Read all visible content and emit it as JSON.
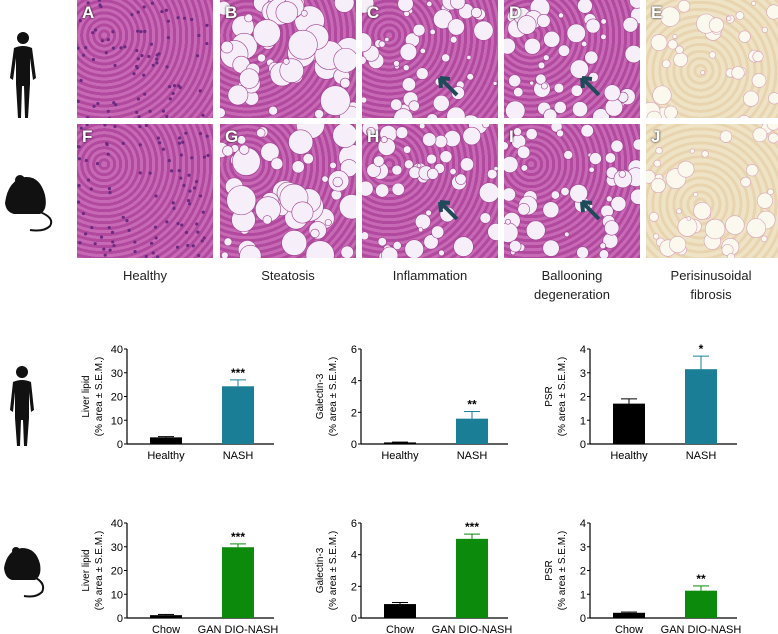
{
  "panels": [
    {
      "letter": "A",
      "stain": "HE",
      "species": "human"
    },
    {
      "letter": "B",
      "stain": "HE",
      "species": "human"
    },
    {
      "letter": "C",
      "stain": "HE",
      "species": "human",
      "arrow": true
    },
    {
      "letter": "D",
      "stain": "HE",
      "species": "human",
      "arrow": true
    },
    {
      "letter": "E",
      "stain": "PSR",
      "species": "human"
    },
    {
      "letter": "F",
      "stain": "HE",
      "species": "mouse"
    },
    {
      "letter": "G",
      "stain": "HE",
      "species": "mouse"
    },
    {
      "letter": "H",
      "stain": "HE",
      "species": "mouse",
      "arrow": true
    },
    {
      "letter": "I",
      "stain": "HE",
      "species": "mouse",
      "arrow": true
    },
    {
      "letter": "J",
      "stain": "PSR",
      "species": "mouse"
    }
  ],
  "captions": [
    "Healthy",
    "Steatosis",
    "Inflammation",
    "Ballooning degeneration",
    "Perisinusoidal fibrosis"
  ],
  "icons": {
    "row1": "human-silhouette-icon",
    "row2": "mouse-silhouette-icon"
  },
  "colors": {
    "black": "#000000",
    "human": "#1a7f96",
    "mouse": "#0b8a0b"
  },
  "chart_data": [
    {
      "type": "bar",
      "ylabel": "Liver lipid",
      "ylabel2": "(% area ± S.E.M.)",
      "categories": [
        "Healthy",
        "NASH"
      ],
      "values": [
        2.8,
        24.3
      ],
      "errors": [
        0.3,
        2.7
      ],
      "ylim": [
        0,
        40
      ],
      "ticks": [
        0,
        10,
        20,
        30,
        40
      ],
      "significance": "***",
      "color": "#1a7f96"
    },
    {
      "type": "bar",
      "ylabel": "Galectin-3",
      "ylabel2": "(% area ± S.E.M.)",
      "categories": [
        "Healthy",
        "NASH"
      ],
      "values": [
        0.1,
        1.6
      ],
      "errors": [
        0.02,
        0.45
      ],
      "ylim": [
        0,
        6
      ],
      "ticks": [
        0,
        2,
        4,
        6
      ],
      "significance": "**",
      "color": "#1a7f96"
    },
    {
      "type": "bar",
      "ylabel": "PSR",
      "ylabel2": "(% area ± S.E.M.)",
      "categories": [
        "Healthy",
        "NASH"
      ],
      "values": [
        1.7,
        3.15
      ],
      "errors": [
        0.2,
        0.55
      ],
      "ylim": [
        0,
        4
      ],
      "ticks": [
        0,
        1,
        2,
        3,
        4
      ],
      "significance": "*",
      "color": "#1a7f96"
    },
    {
      "type": "bar",
      "ylabel": "Liver lipid",
      "ylabel2": "(% area ± S.E.M.)",
      "categories": [
        "Chow",
        "GAN DIO-NASH"
      ],
      "values": [
        1.2,
        29.8
      ],
      "errors": [
        0.3,
        1.4
      ],
      "ylim": [
        0,
        40
      ],
      "ticks": [
        0,
        10,
        20,
        30,
        40
      ],
      "significance": "***",
      "color": "#0b8a0b"
    },
    {
      "type": "bar",
      "ylabel": "Galectin-3",
      "ylabel2": "(% area ± S.E.M.)",
      "categories": [
        "Chow",
        "GAN DIO-NASH"
      ],
      "values": [
        0.88,
        5.0
      ],
      "errors": [
        0.1,
        0.3
      ],
      "ylim": [
        0,
        6
      ],
      "ticks": [
        0,
        2,
        4,
        6
      ],
      "significance": "***",
      "color": "#0b8a0b"
    },
    {
      "type": "bar",
      "ylabel": "PSR",
      "ylabel2": "(% area ± S.E.M.)",
      "categories": [
        "Chow",
        "GAN DIO-NASH"
      ],
      "values": [
        0.22,
        1.15
      ],
      "errors": [
        0.03,
        0.2
      ],
      "ylim": [
        0,
        4
      ],
      "ticks": [
        0,
        1,
        2,
        3,
        4
      ],
      "significance": "**",
      "color": "#0b8a0b"
    }
  ]
}
